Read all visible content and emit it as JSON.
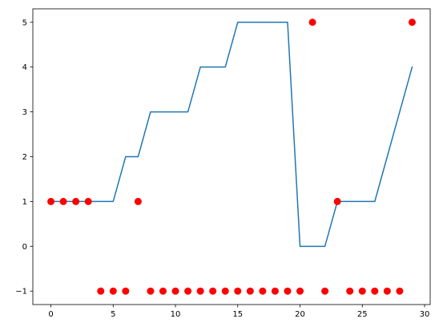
{
  "chart_data": {
    "type": "line",
    "title": "",
    "xlabel": "",
    "ylabel": "",
    "xlim": [
      -1.45,
      30.45
    ],
    "ylim": [
      -1.3,
      5.3
    ],
    "grid": false,
    "x_ticks": [
      0,
      5,
      10,
      15,
      20,
      25,
      30
    ],
    "y_ticks": [
      -1,
      0,
      1,
      2,
      3,
      4,
      5
    ],
    "series": [
      {
        "kind": "line",
        "color": "#1f77b4",
        "x": [
          0,
          1,
          2,
          3,
          4,
          5,
          6,
          7,
          8,
          9,
          10,
          11,
          12,
          13,
          14,
          15,
          16,
          17,
          18,
          19,
          20,
          21,
          22,
          23,
          24,
          25,
          26,
          27,
          28,
          29
        ],
        "y": [
          1,
          1,
          1,
          1,
          1,
          1,
          2,
          2,
          3,
          3,
          3,
          3,
          4,
          4,
          4,
          5,
          5,
          5,
          5,
          5,
          0,
          0,
          0,
          1,
          1,
          1,
          1,
          2,
          3,
          4
        ]
      },
      {
        "kind": "scatter",
        "color": "#ff0000",
        "x": [
          0,
          1,
          2,
          3,
          4,
          5,
          6,
          7,
          8,
          9,
          10,
          11,
          12,
          13,
          14,
          15,
          16,
          17,
          18,
          19,
          20,
          21,
          22,
          23,
          24,
          25,
          26,
          27,
          28,
          29
        ],
        "y": [
          1,
          1,
          1,
          1,
          -1,
          -1,
          -1,
          1,
          -1,
          -1,
          -1,
          -1,
          -1,
          -1,
          -1,
          -1,
          -1,
          -1,
          -1,
          -1,
          -1,
          5,
          -1,
          1,
          -1,
          -1,
          -1,
          -1,
          -1,
          5
        ]
      }
    ]
  }
}
